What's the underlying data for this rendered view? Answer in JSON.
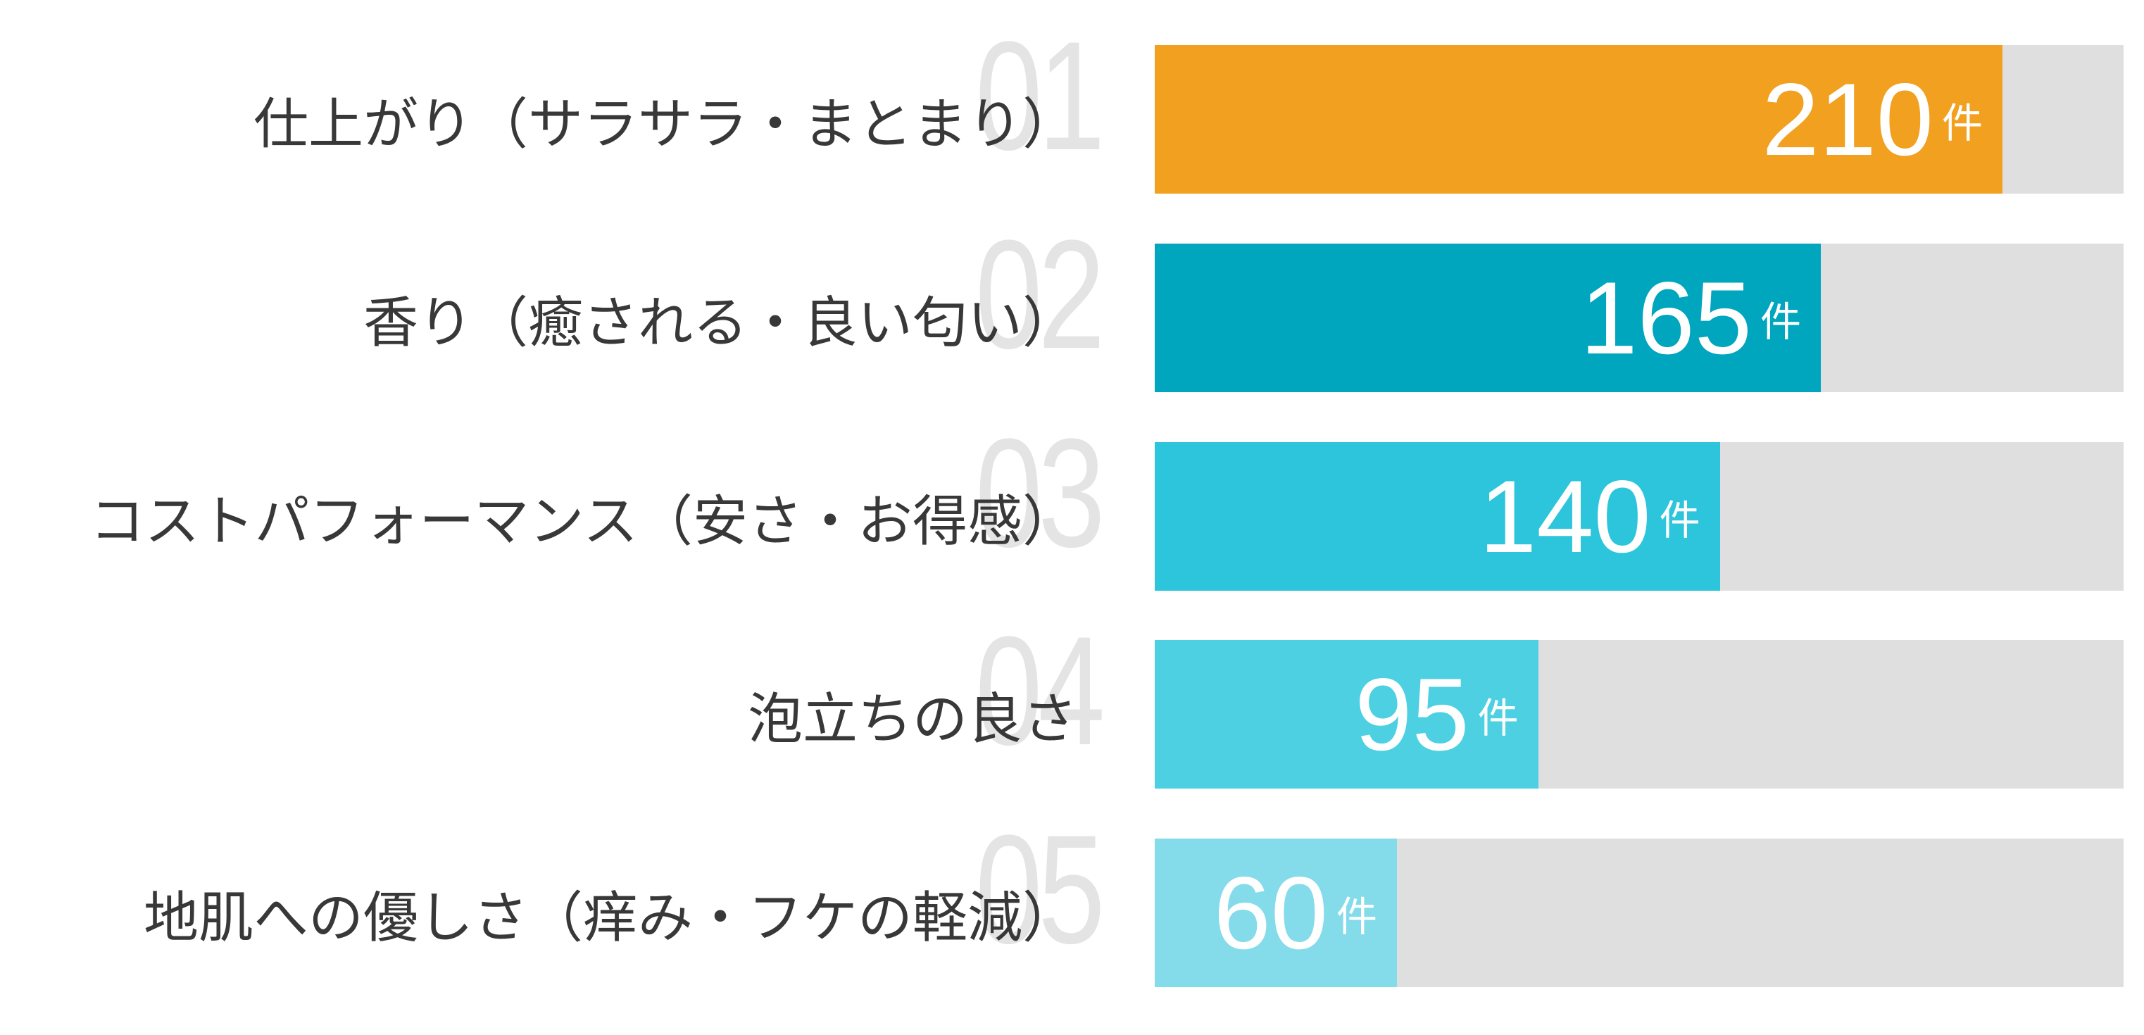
{
  "chart_data": {
    "type": "bar",
    "orientation": "horizontal",
    "title": "",
    "xlabel": "",
    "ylabel": "",
    "unit": "件",
    "xlim": [
      0,
      240
    ],
    "grid": false,
    "legend": false,
    "categories": [
      "仕上がり（サラサラ・まとまり）",
      "香り（癒される・良い匂い）",
      "コストパフォーマンス（安さ・お得感）",
      "泡立ちの良さ",
      "地肌への優しさ（痒み・フケの軽減）"
    ],
    "values": [
      210,
      165,
      140,
      95,
      60
    ],
    "colors": {
      "track": "#dfdfdf",
      "index_number": "#e4e4e4",
      "category_text": "#383838",
      "value_text": "#ffffff"
    },
    "rows": [
      {
        "index_label": "01",
        "category": "仕上がり（サラサラ・まとまり）",
        "value": 210,
        "color": "#f2a01f"
      },
      {
        "index_label": "02",
        "category": "香り（癒される・良い匂い）",
        "value": 165,
        "color": "#00a5be"
      },
      {
        "index_label": "03",
        "category": "コストパフォーマンス（安さ・お得感）",
        "value": 140,
        "color": "#2cc5dc"
      },
      {
        "index_label": "04",
        "category": "泡立ちの良さ",
        "value": 95,
        "color": "#4dd0e1"
      },
      {
        "index_label": "05",
        "category": "地肌への優しさ（痒み・フケの軽減）",
        "value": 60,
        "color": "#84dbea"
      }
    ]
  }
}
